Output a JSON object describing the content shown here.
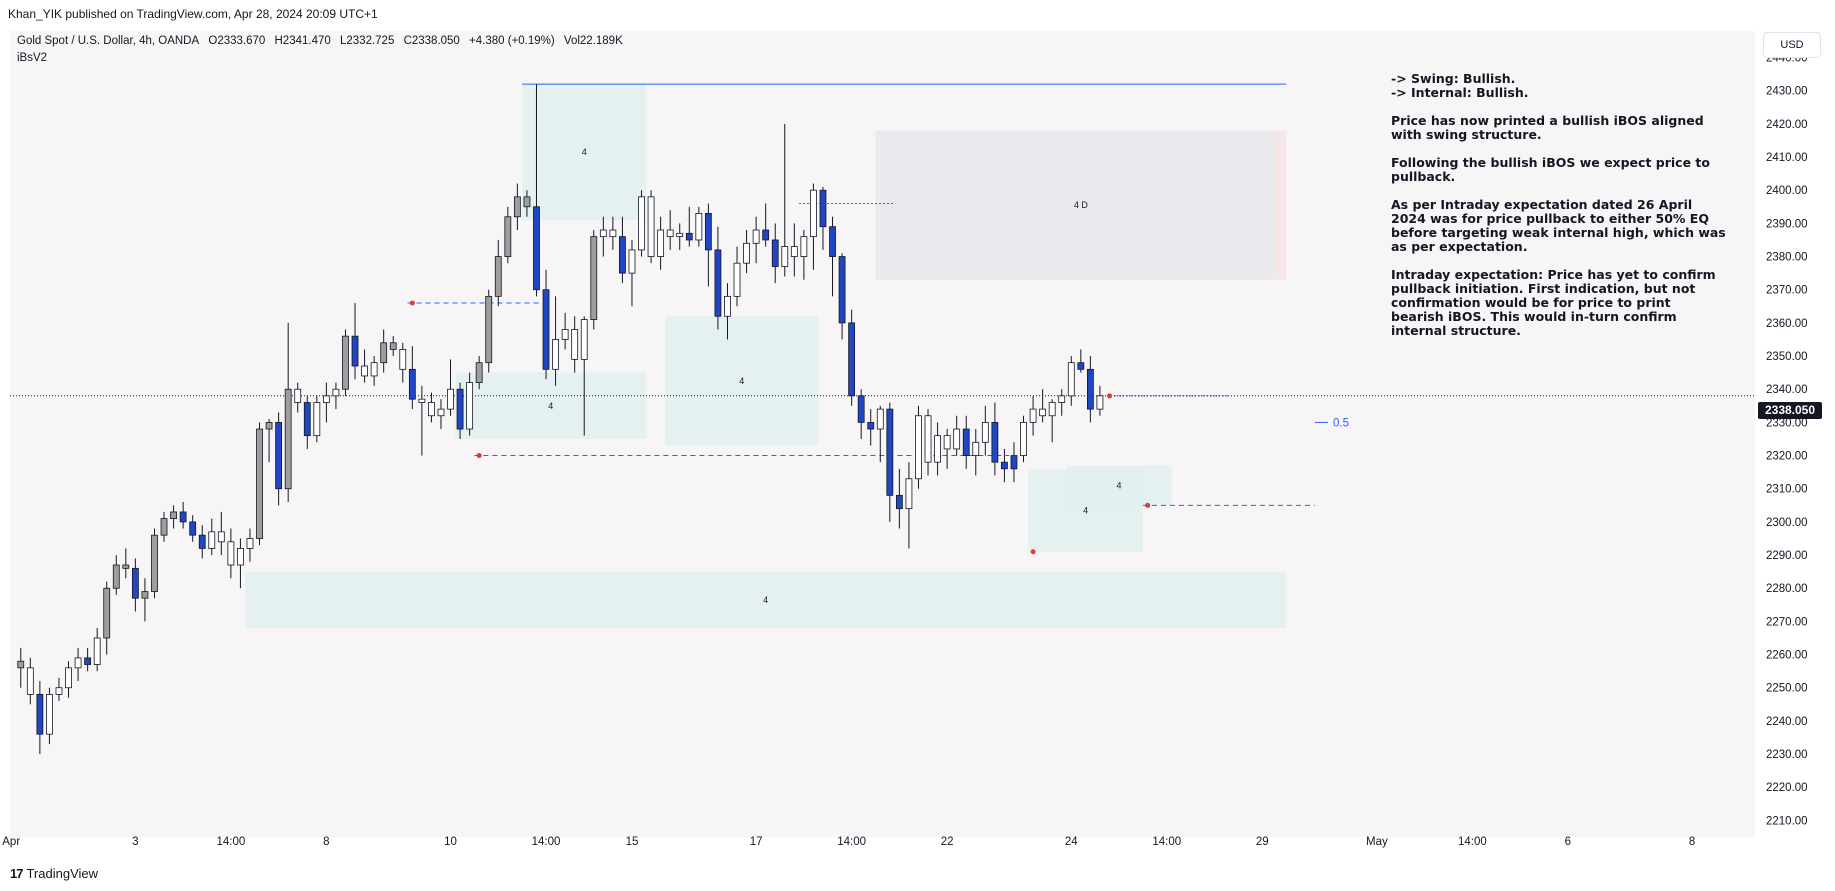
{
  "header": {
    "publisher_text": "Khan_YIK published on TradingView.com, Apr 28, 2024 20:09 UTC+1"
  },
  "legend": {
    "symbol": "Gold Spot / U.S. Dollar, 4h, OANDA",
    "open": "O2333.670",
    "high": "H2341.470",
    "low": "L2332.725",
    "close": "C2338.050",
    "change": "+4.380 (+0.19%)",
    "volume": "Vol22.189K",
    "indicator": "iBsV2"
  },
  "currency_button": "USD",
  "last_price_tag": "2338.050",
  "commentary": {
    "swing": "-> Swing:  Bullish.",
    "internal": "-> Internal:  Bullish.",
    "p1": "Price has now printed a bullish iBOS aligned with swing structure.",
    "p2": "Following the bullish iBOS we expect price to pullback.",
    "p3": "As per Intraday expectation dated 26 April 2024 was for price pullback to either 50% EQ before targeting weak internal high, which was as per expectation.",
    "p4": "Intraday expectation: Price has yet to confirm pullback initiation.  First indication, but not confirmation would be for price to print bearish iBOS.  This would in-turn confirm internal structure."
  },
  "footer": {
    "brand": "TradingView"
  },
  "colors": {
    "bull_candle_fill": "#ffffff",
    "bear_candle_fill": "#2146c4",
    "neutral_candle_fill": "#9e9e9e",
    "demand_zone": "#e2f0f0",
    "supply_zone": "#e6e6ec",
    "level_line": "#2962ff",
    "swing_point": "#e53935"
  },
  "chart_data": {
    "type": "candlestick",
    "title": "Gold Spot / U.S. Dollar, 4h, OANDA",
    "ylim": [
      2205,
      2448
    ],
    "y_ticks": [
      2210,
      2220,
      2230,
      2240,
      2250,
      2260,
      2270,
      2280,
      2290,
      2300,
      2310,
      2320,
      2330,
      2340,
      2350,
      2360,
      2370,
      2380,
      2390,
      2400,
      2410,
      2420,
      2430,
      2440
    ],
    "x_tick_labels": [
      {
        "label": "Apr",
        "bar": -1
      },
      {
        "label": "3",
        "bar": 12
      },
      {
        "label": "14:00",
        "bar": 22
      },
      {
        "label": "8",
        "bar": 32
      },
      {
        "label": "10",
        "bar": 45
      },
      {
        "label": "14:00",
        "bar": 55
      },
      {
        "label": "15",
        "bar": 64
      },
      {
        "label": "17",
        "bar": 77
      },
      {
        "label": "14:00",
        "bar": 87
      },
      {
        "label": "22",
        "bar": 97
      },
      {
        "label": "24",
        "bar": 110
      },
      {
        "label": "14:00",
        "bar": 120
      },
      {
        "label": "29",
        "bar": 130
      },
      {
        "label": "May",
        "bar": 142
      },
      {
        "label": "14:00",
        "bar": 152
      },
      {
        "label": "6",
        "bar": 162
      },
      {
        "label": "8",
        "bar": 175
      }
    ],
    "candles": [
      [
        2258,
        2262,
        2250,
        2256,
        "n"
      ],
      [
        2256,
        2259,
        2245,
        2248,
        "w"
      ],
      [
        2248,
        2252,
        2230,
        2236,
        "b"
      ],
      [
        2236,
        2250,
        2233,
        2248,
        "w"
      ],
      [
        2248,
        2253,
        2246,
        2250,
        "w"
      ],
      [
        2250,
        2258,
        2247,
        2256,
        "w"
      ],
      [
        2256,
        2262,
        2252,
        2259,
        "w"
      ],
      [
        2259,
        2262,
        2255,
        2257,
        "b"
      ],
      [
        2257,
        2268,
        2255,
        2265,
        "w"
      ],
      [
        2265,
        2282,
        2260,
        2280,
        "n"
      ],
      [
        2280,
        2290,
        2278,
        2287,
        "n"
      ],
      [
        2287,
        2292,
        2283,
        2286,
        "n"
      ],
      [
        2286,
        2289,
        2273,
        2277,
        "b"
      ],
      [
        2277,
        2283,
        2270,
        2279,
        "n"
      ],
      [
        2279,
        2298,
        2277,
        2296,
        "n"
      ],
      [
        2296,
        2303,
        2294,
        2301,
        "n"
      ],
      [
        2301,
        2305,
        2298,
        2303,
        "n"
      ],
      [
        2303,
        2306,
        2298,
        2300,
        "b"
      ],
      [
        2300,
        2302,
        2294,
        2296,
        "b"
      ],
      [
        2296,
        2299,
        2289,
        2292,
        "b"
      ],
      [
        2292,
        2301,
        2290,
        2297,
        "w"
      ],
      [
        2297,
        2303,
        2290,
        2294,
        "w"
      ],
      [
        2294,
        2298,
        2283,
        2287,
        "w"
      ],
      [
        2287,
        2295,
        2280,
        2292,
        "w"
      ],
      [
        2292,
        2298,
        2288,
        2295,
        "w"
      ],
      [
        2295,
        2330,
        2293,
        2328,
        "n"
      ],
      [
        2328,
        2331,
        2318,
        2330,
        "n"
      ],
      [
        2330,
        2333,
        2305,
        2310,
        "b"
      ],
      [
        2310,
        2360,
        2306,
        2340,
        "n"
      ],
      [
        2340,
        2342,
        2333,
        2336,
        "w"
      ],
      [
        2336,
        2338,
        2322,
        2326,
        "b"
      ],
      [
        2326,
        2338,
        2324,
        2336,
        "w"
      ],
      [
        2336,
        2342,
        2330,
        2338,
        "w"
      ],
      [
        2338,
        2342,
        2334,
        2340,
        "w"
      ],
      [
        2340,
        2358,
        2338,
        2356,
        "n"
      ],
      [
        2356,
        2366,
        2343,
        2347,
        "b"
      ],
      [
        2347,
        2352,
        2342,
        2344,
        "w"
      ],
      [
        2344,
        2350,
        2341,
        2348,
        "w"
      ],
      [
        2348,
        2358,
        2345,
        2354,
        "n"
      ],
      [
        2354,
        2356,
        2350,
        2352,
        "n"
      ],
      [
        2352,
        2354,
        2342,
        2346,
        "w"
      ],
      [
        2346,
        2353,
        2334,
        2337,
        "b"
      ],
      [
        2337,
        2341,
        2320,
        2336,
        "w"
      ],
      [
        2336,
        2339,
        2330,
        2332,
        "w"
      ],
      [
        2332,
        2337,
        2328,
        2334,
        "w"
      ],
      [
        2334,
        2349,
        2332,
        2340,
        "w"
      ],
      [
        2340,
        2342,
        2325,
        2328,
        "b"
      ],
      [
        2328,
        2345,
        2326,
        2342,
        "w"
      ],
      [
        2342,
        2350,
        2340,
        2348,
        "n"
      ],
      [
        2348,
        2370,
        2345,
        2368,
        "n"
      ],
      [
        2368,
        2385,
        2365,
        2380,
        "n"
      ],
      [
        2380,
        2395,
        2378,
        2392,
        "n"
      ],
      [
        2392,
        2402,
        2388,
        2398,
        "n"
      ],
      [
        2398,
        2400,
        2392,
        2395,
        "n"
      ],
      [
        2395,
        2432,
        2368,
        2370,
        "b"
      ],
      [
        2370,
        2376,
        2343,
        2346,
        "b"
      ],
      [
        2346,
        2368,
        2341,
        2355,
        "w"
      ],
      [
        2355,
        2363,
        2352,
        2358,
        "w"
      ],
      [
        2358,
        2362,
        2345,
        2349,
        "w"
      ],
      [
        2349,
        2362,
        2326,
        2361,
        "w"
      ],
      [
        2361,
        2388,
        2358,
        2386,
        "n"
      ],
      [
        2386,
        2392,
        2380,
        2388,
        "w"
      ],
      [
        2388,
        2392,
        2382,
        2386,
        "w"
      ],
      [
        2386,
        2392,
        2372,
        2375,
        "b"
      ],
      [
        2375,
        2385,
        2365,
        2382,
        "w"
      ],
      [
        2382,
        2400,
        2380,
        2398,
        "w"
      ],
      [
        2398,
        2400,
        2378,
        2380,
        "w"
      ],
      [
        2380,
        2392,
        2376,
        2388,
        "w"
      ],
      [
        2388,
        2394,
        2382,
        2386,
        "w"
      ],
      [
        2386,
        2390,
        2382,
        2387,
        "w"
      ],
      [
        2387,
        2395,
        2383,
        2385,
        "b"
      ],
      [
        2385,
        2395,
        2383,
        2393,
        "w"
      ],
      [
        2393,
        2396,
        2371,
        2382,
        "b"
      ],
      [
        2382,
        2389,
        2358,
        2362,
        "b"
      ],
      [
        2362,
        2372,
        2355,
        2368,
        "w"
      ],
      [
        2368,
        2383,
        2365,
        2378,
        "w"
      ],
      [
        2378,
        2388,
        2375,
        2384,
        "w"
      ],
      [
        2384,
        2392,
        2378,
        2388,
        "w"
      ],
      [
        2388,
        2396,
        2383,
        2385,
        "b"
      ],
      [
        2385,
        2390,
        2372,
        2377,
        "b"
      ],
      [
        2377,
        2420,
        2374,
        2383,
        "w"
      ],
      [
        2383,
        2390,
        2374,
        2380,
        "w"
      ],
      [
        2380,
        2388,
        2373,
        2386,
        "w"
      ],
      [
        2386,
        2402,
        2376,
        2400,
        "w"
      ],
      [
        2400,
        2401,
        2382,
        2389,
        "b"
      ],
      [
        2389,
        2392,
        2368,
        2380,
        "b"
      ],
      [
        2380,
        2381,
        2355,
        2360,
        "b"
      ],
      [
        2360,
        2364,
        2335,
        2338,
        "b"
      ],
      [
        2338,
        2340,
        2325,
        2330,
        "b"
      ],
      [
        2330,
        2334,
        2323,
        2328,
        "b"
      ],
      [
        2328,
        2335,
        2318,
        2334,
        "w"
      ],
      [
        2334,
        2336,
        2300,
        2308,
        "b"
      ],
      [
        2308,
        2316,
        2298,
        2304,
        "b"
      ],
      [
        2304,
        2318,
        2292,
        2313,
        "w"
      ],
      [
        2313,
        2335,
        2310,
        2332,
        "w"
      ],
      [
        2332,
        2334,
        2314,
        2318,
        "w"
      ],
      [
        2318,
        2330,
        2314,
        2326,
        "w"
      ],
      [
        2326,
        2328,
        2316,
        2322,
        "w"
      ],
      [
        2322,
        2332,
        2320,
        2328,
        "w"
      ],
      [
        2328,
        2332,
        2316,
        2320,
        "b"
      ],
      [
        2320,
        2328,
        2314,
        2324,
        "w"
      ],
      [
        2324,
        2335,
        2320,
        2330,
        "w"
      ],
      [
        2330,
        2336,
        2314,
        2318,
        "b"
      ],
      [
        2318,
        2322,
        2312,
        2316,
        "b"
      ],
      [
        2316,
        2324,
        2312,
        2320,
        "b"
      ],
      [
        2320,
        2332,
        2318,
        2330,
        "w"
      ],
      [
        2330,
        2338,
        2326,
        2334,
        "w"
      ],
      [
        2334,
        2340,
        2330,
        2332,
        "w"
      ],
      [
        2332,
        2337,
        2324,
        2336,
        "w"
      ],
      [
        2336,
        2340,
        2332,
        2338,
        "w"
      ],
      [
        2338,
        2350,
        2335,
        2348,
        "w"
      ],
      [
        2348,
        2352,
        2345,
        2346,
        "b"
      ],
      [
        2346,
        2350,
        2330,
        2334,
        "b"
      ],
      [
        2334,
        2341,
        2332,
        2338,
        "w"
      ]
    ],
    "zones": [
      {
        "type": "demand",
        "bar_start": 53,
        "bar_end": 66,
        "low": 2391,
        "high": 2432,
        "label": "4"
      },
      {
        "type": "demand",
        "bar_start": 68,
        "bar_end": 84,
        "low": 2323,
        "high": 2362,
        "label": "4"
      },
      {
        "type": "demand",
        "bar_start": 46,
        "bar_end": 66,
        "low": 2325,
        "high": 2345,
        "label": "4"
      },
      {
        "type": "supply",
        "bar_start": 90,
        "bar_end": 133,
        "low": 2373,
        "high": 2418,
        "label": "4 D"
      },
      {
        "type": "demand",
        "bar_start": 24,
        "bar_end": 133,
        "low": 2268,
        "high": 2285,
        "label": "4"
      },
      {
        "type": "demand",
        "bar_start": 106,
        "bar_end": 118,
        "low": 2291,
        "high": 2316,
        "label": "4"
      },
      {
        "type": "demand",
        "bar_start": 110,
        "bar_end": 121,
        "low": 2305,
        "high": 2317,
        "label": "4"
      }
    ],
    "levels": [
      {
        "price": 2432,
        "bar_start": 53,
        "bar_end": 133,
        "style": "solid"
      },
      {
        "price": 2366,
        "bar_start": 41,
        "bar_end": 56,
        "style": "dashed"
      },
      {
        "price": 2320,
        "bar_start": 48,
        "bar_end": 104,
        "style": "dashed"
      },
      {
        "price": 2305,
        "bar_start": 118,
        "bar_end": 136,
        "style": "dashed"
      },
      {
        "price": 2396,
        "bar_start": 82,
        "bar_end": 92,
        "style": "dotted"
      },
      {
        "price": 2338,
        "bar_start": 115,
        "bar_end": 127,
        "style": "dotted"
      }
    ],
    "eq_level": {
      "price": 2330,
      "label": "0.5"
    },
    "swing_points": [
      {
        "bar": 41,
        "price": 2366
      },
      {
        "bar": 48,
        "price": 2320
      },
      {
        "bar": 106,
        "price": 2291
      },
      {
        "bar": 118,
        "price": 2305
      },
      {
        "bar": 114,
        "price": 2338
      }
    ],
    "last_price": 2338.05
  }
}
